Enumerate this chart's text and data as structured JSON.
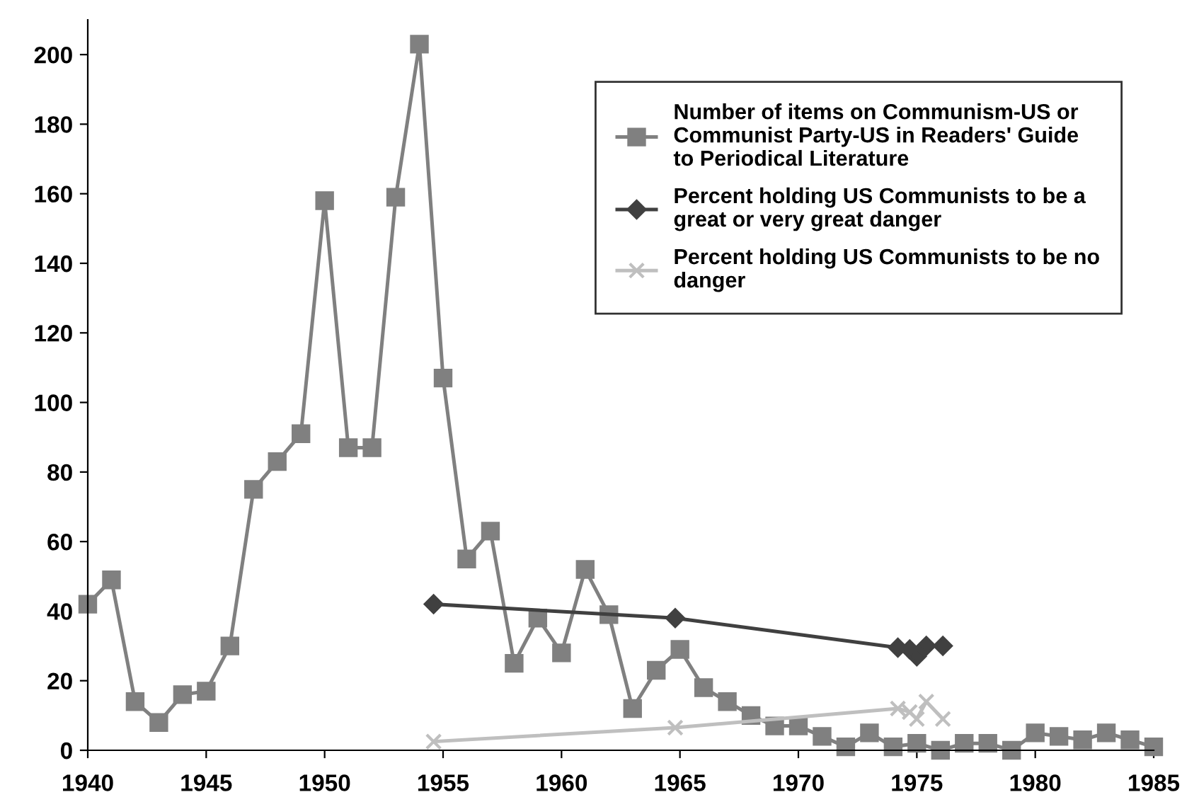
{
  "chart_data": {
    "type": "line",
    "xlim": [
      1940,
      1985
    ],
    "xticks": [
      1940,
      1945,
      1950,
      1955,
      1960,
      1965,
      1970,
      1975,
      1980,
      1985
    ],
    "ylim": [
      0,
      210
    ],
    "yticks": [
      0,
      20,
      40,
      60,
      80,
      100,
      120,
      140,
      160,
      180,
      200
    ],
    "grid": false,
    "legend": "top right",
    "series": [
      {
        "name": "Number of items on Communism-US or Communist Party-US in Readers' Guide to Periodical Literature",
        "color": "#808080",
        "marker": "square",
        "x": [
          1940,
          1941,
          1942,
          1943,
          1944,
          1945,
          1946,
          1947,
          1948,
          1949,
          1950,
          1951,
          1952,
          1953,
          1954,
          1955,
          1956,
          1957,
          1958,
          1959,
          1960,
          1961,
          1962,
          1963,
          1964,
          1965,
          1966,
          1967,
          1968,
          1969,
          1970,
          1971,
          1972,
          1973,
          1974,
          1975,
          1976,
          1977,
          1978,
          1979,
          1980,
          1981,
          1982,
          1983,
          1984,
          1985
        ],
        "values": [
          42,
          49,
          14,
          8,
          16,
          17,
          30,
          75,
          83,
          91,
          158,
          87,
          87,
          159,
          203,
          107,
          55,
          63,
          25,
          38,
          28,
          52,
          39,
          12,
          23,
          29,
          18,
          14,
          10,
          7,
          7,
          4,
          1,
          5,
          1,
          2,
          0,
          2,
          2,
          0,
          5,
          4,
          3,
          5,
          3,
          1
        ]
      },
      {
        "name": "Percent holding US Communists to be a great or very great danger",
        "color": "#404040",
        "marker": "diamond",
        "x": [
          1954.6,
          1964.8,
          1974.2,
          1974.7,
          1975.0,
          1975.4,
          1976.1
        ],
        "values": [
          42,
          38,
          29.5,
          29,
          27,
          30,
          30
        ]
      },
      {
        "name": "Percent holding US Communists to be no danger",
        "color": "#bfbfbf",
        "marker": "cross",
        "x": [
          1954.6,
          1964.8,
          1974.2,
          1974.7,
          1975.0,
          1975.4,
          1976.1
        ],
        "values": [
          2.5,
          6.5,
          12,
          11,
          9,
          14,
          9
        ]
      }
    ]
  }
}
